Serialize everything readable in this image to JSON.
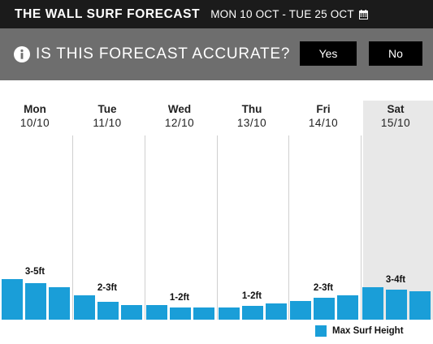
{
  "header": {
    "title": "THE WALL SURF FORECAST",
    "date_range": "MON 10 OCT - TUE 25 OCT",
    "calendar_icon": "calendar-icon"
  },
  "banner": {
    "info_icon": "info-icon",
    "question": "IS THIS FORECAST ACCURATE?",
    "yes_label": "Yes",
    "no_label": "No"
  },
  "colors": {
    "bar": "#1a9ed8",
    "topbar": "#1b1b1b",
    "banner": "#6e6e6e",
    "highlight_day": "#e8e8e8"
  },
  "chart_data": {
    "type": "bar",
    "highlighted_day": "Sat",
    "legend": "Max Surf Height",
    "legend_position": "bottom-right",
    "days": [
      {
        "name": "Mon",
        "date": "10/10",
        "label": "3-5ft",
        "values": [
          5,
          4.5,
          4
        ]
      },
      {
        "name": "Tue",
        "date": "11/10",
        "label": "2-3ft",
        "values": [
          3,
          2.2,
          1.8
        ]
      },
      {
        "name": "Wed",
        "date": "12/10",
        "label": "1-2ft",
        "values": [
          1.8,
          1.5,
          1.5
        ]
      },
      {
        "name": "Thu",
        "date": "13/10",
        "label": "1-2ft",
        "values": [
          1.5,
          1.7,
          2
        ]
      },
      {
        "name": "Fri",
        "date": "14/10",
        "label": "2-3ft",
        "values": [
          2.3,
          2.7,
          3
        ]
      },
      {
        "name": "Sat",
        "date": "15/10",
        "label": "3-4ft",
        "values": [
          4,
          3.7,
          3.5
        ]
      }
    ]
  }
}
